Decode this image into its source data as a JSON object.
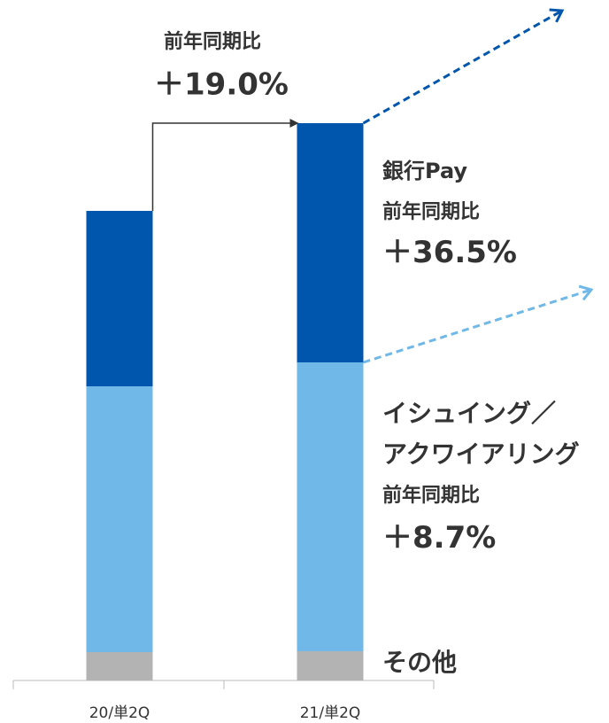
{
  "chart_data": {
    "type": "bar",
    "stacked": true,
    "categories": [
      "20/単2Q",
      "21/単2Q"
    ],
    "series": [
      {
        "name": "その他",
        "color": "#b3b3b3",
        "values": [
          32,
          33
        ]
      },
      {
        "name": "イシュイング／\nアクワイアリング",
        "color": "#70b8e8",
        "values": [
          300,
          326
        ]
      },
      {
        "name": "銀行Pay",
        "color": "#0056ad",
        "values": [
          198,
          270
        ]
      }
    ],
    "annotations": {
      "total": {
        "label": "前年同期比",
        "change": "＋19.0%"
      },
      "series": [
        {
          "label": null,
          "change": null
        },
        {
          "label": "前年同期比",
          "change": "＋8.7%"
        },
        {
          "label": "前年同期比",
          "change": "＋36.5%"
        }
      ]
    }
  }
}
